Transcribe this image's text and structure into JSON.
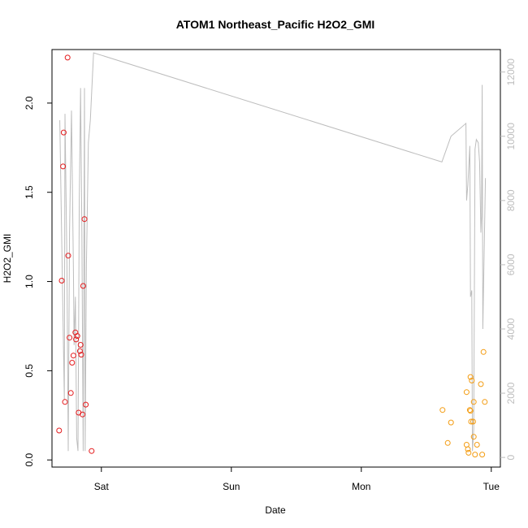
{
  "chart_data": {
    "type": "scatter",
    "title": "ATOM1 Northeast_Pacific H2O2_GMI",
    "xlabel": "Date",
    "ylabel": "H2O2_GMI",
    "x_ticks": [
      "Sat",
      "Sun",
      "Mon",
      "Tue"
    ],
    "x_tick_days": [
      1,
      2,
      3,
      4
    ],
    "xlim": [
      0.62,
      4.07
    ],
    "ylim": [
      -0.04,
      2.3
    ],
    "y_ticks": [
      "0.0",
      "0.5",
      "1.0",
      "1.5",
      "2.0"
    ],
    "y_tick_values": [
      0,
      0.5,
      1.0,
      1.5,
      2.0
    ],
    "y2lim": [
      -300,
      12700
    ],
    "y2_ticks": [
      "0",
      "2000",
      "4000",
      "6000",
      "8000",
      "10000",
      "12000"
    ],
    "y2_tick_values": [
      0,
      2000,
      4000,
      6000,
      8000,
      10000,
      12000
    ],
    "colors": {
      "series_red": "#e41a1c",
      "series_orange": "#f39c12",
      "altitude_line": "#bdbdbd",
      "axis": "#000000"
    },
    "series": [
      {
        "color": "#e41a1c",
        "points": [
          [
            0.675,
            0.165
          ],
          [
            0.695,
            1.005
          ],
          [
            0.705,
            1.645
          ],
          [
            0.71,
            1.835
          ],
          [
            0.72,
            0.325
          ],
          [
            0.74,
            2.255
          ],
          [
            0.745,
            1.145
          ],
          [
            0.755,
            0.685
          ],
          [
            0.765,
            0.375
          ],
          [
            0.775,
            0.545
          ],
          [
            0.785,
            0.585
          ],
          [
            0.8,
            0.715
          ],
          [
            0.805,
            0.675
          ],
          [
            0.815,
            0.695
          ],
          [
            0.825,
            0.265
          ],
          [
            0.835,
            0.61
          ],
          [
            0.84,
            0.645
          ],
          [
            0.845,
            0.59
          ],
          [
            0.855,
            0.255
          ],
          [
            0.86,
            0.975
          ],
          [
            0.87,
            1.35
          ],
          [
            0.88,
            0.31
          ],
          [
            0.925,
            0.05
          ]
        ]
      },
      {
        "color": "#f39c12",
        "points": [
          [
            3.625,
            0.28
          ],
          [
            3.665,
            0.095
          ],
          [
            3.69,
            0.21
          ],
          [
            3.81,
            0.085
          ],
          [
            3.81,
            0.38
          ],
          [
            3.82,
            0.06
          ],
          [
            3.825,
            0.04
          ],
          [
            3.835,
            0.28
          ],
          [
            3.84,
            0.275
          ],
          [
            3.84,
            0.465
          ],
          [
            3.845,
            0.215
          ],
          [
            3.85,
            0.445
          ],
          [
            3.86,
            0.215
          ],
          [
            3.865,
            0.325
          ],
          [
            3.865,
            0.13
          ],
          [
            3.875,
            0.03
          ],
          [
            3.89,
            0.085
          ],
          [
            3.92,
            0.425
          ],
          [
            3.93,
            0.03
          ],
          [
            3.94,
            0.605
          ],
          [
            3.95,
            0.325
          ]
        ]
      }
    ],
    "altitude_line": {
      "axis": "right",
      "points": [
        [
          0.68,
          10500
        ],
        [
          0.7,
          5500
        ],
        [
          0.715,
          1800
        ],
        [
          0.72,
          10700
        ],
        [
          0.735,
          6000
        ],
        [
          0.745,
          200
        ],
        [
          0.755,
          7000
        ],
        [
          0.77,
          10800
        ],
        [
          0.785,
          5800
        ],
        [
          0.79,
          3500
        ],
        [
          0.8,
          5000
        ],
        [
          0.81,
          600
        ],
        [
          0.82,
          200
        ],
        [
          0.83,
          8000
        ],
        [
          0.84,
          11500
        ],
        [
          0.85,
          7000
        ],
        [
          0.86,
          200
        ],
        [
          0.87,
          11500
        ],
        [
          0.875,
          200
        ],
        [
          0.885,
          6000
        ],
        [
          0.9,
          9800
        ],
        [
          0.915,
          10500
        ],
        [
          0.94,
          12600
        ],
        [
          3.62,
          9200
        ],
        [
          3.69,
          10000
        ],
        [
          3.805,
          10400
        ],
        [
          3.81,
          8000
        ],
        [
          3.82,
          8500
        ],
        [
          3.835,
          9700
        ],
        [
          3.84,
          5000
        ],
        [
          3.85,
          5200
        ],
        [
          3.855,
          200
        ],
        [
          3.86,
          500
        ],
        [
          3.865,
          900
        ],
        [
          3.875,
          9600
        ],
        [
          3.885,
          9900
        ],
        [
          3.9,
          9800
        ],
        [
          3.91,
          9200
        ],
        [
          3.92,
          7000
        ],
        [
          3.925,
          7500
        ],
        [
          3.93,
          11600
        ],
        [
          3.935,
          4000
        ],
        [
          3.955,
          8700
        ]
      ]
    }
  }
}
